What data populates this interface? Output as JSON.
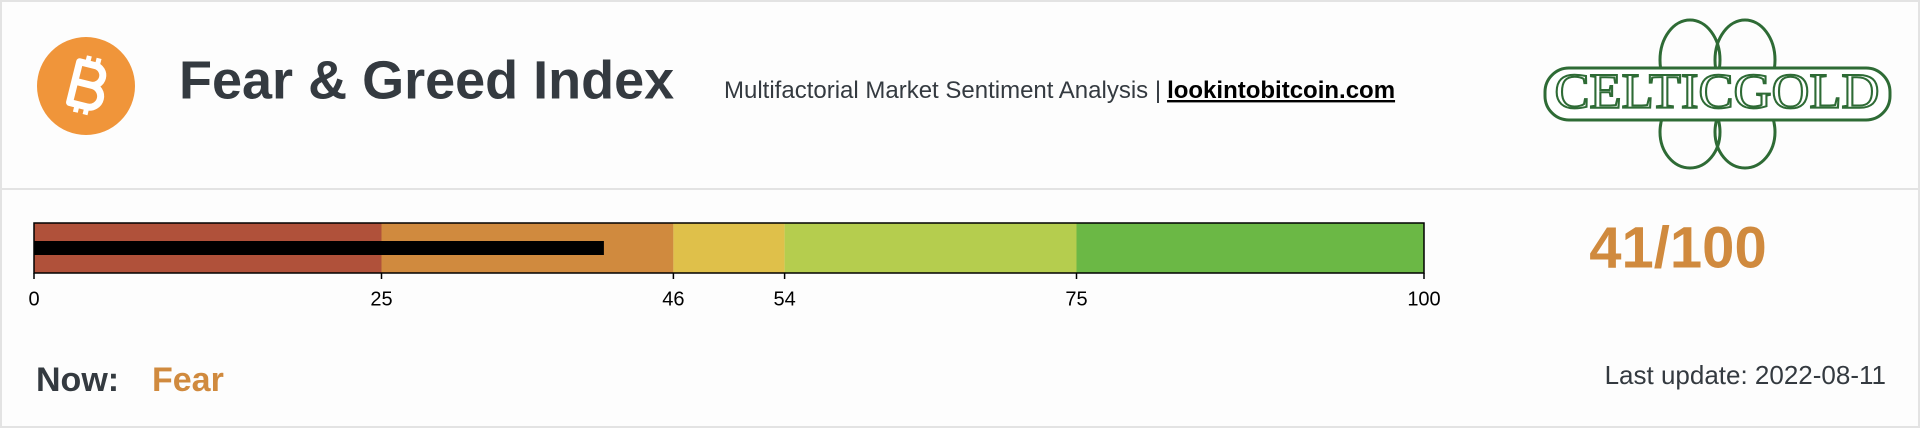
{
  "header": {
    "title": "Fear & Greed Index",
    "subtitle": "Multifactorial Market Sentiment Analysis |",
    "link": "lookintobitcoin.com",
    "logo": "CELTICGOLD"
  },
  "chart_data": {
    "type": "bullet",
    "values": [
      41
    ],
    "value_labels": [
      "41/100"
    ],
    "color": "#000000",
    "label_color": "#d08a3e",
    "xlim": [
      0,
      100
    ],
    "xticks": [
      0,
      25,
      46,
      54,
      75,
      100
    ],
    "bands": [
      {
        "to": 25,
        "color": "#b0513a"
      },
      {
        "to": 46,
        "color": "#d08a3e"
      },
      {
        "to": 54,
        "color": "#dfc04a"
      },
      {
        "to": 75,
        "color": "#b5cd4e"
      },
      {
        "to": 100,
        "color": "#6bb845"
      }
    ]
  },
  "status": {
    "label": "Now:",
    "value": "Fear",
    "color": "#d08a3e",
    "updated": "Last update: 2022-08-11"
  }
}
